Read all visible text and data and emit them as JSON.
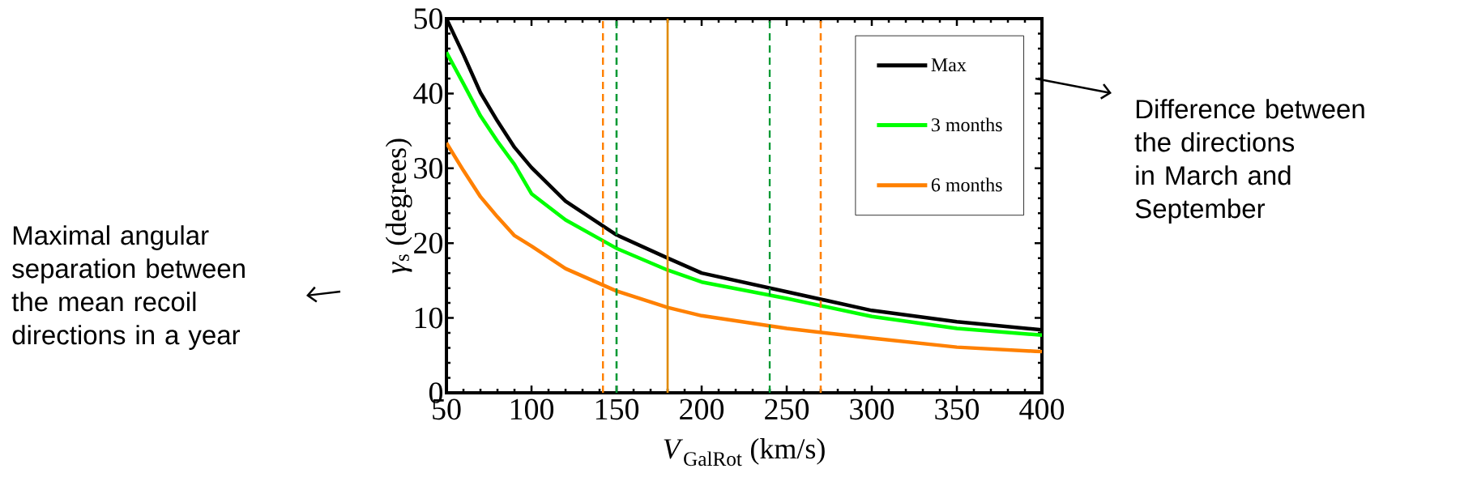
{
  "chart_data": {
    "type": "line",
    "xlabel": "*V*$_{GalRot}$ (km/s)",
    "ylabel": "*γ*$_{s}$ (degrees)",
    "x": [
      50,
      60,
      70,
      80,
      90,
      100,
      120,
      150,
      180,
      200,
      250,
      300,
      350,
      400
    ],
    "series": [
      {
        "name": "Max",
        "color": "#000000",
        "values": [
          50,
          45.2,
          40.1,
          36.3,
          32.8,
          30.1,
          25.6,
          21.1,
          18.0,
          16.0,
          13.5,
          11.0,
          9.5,
          8.4
        ]
      },
      {
        "name": "3 months",
        "color": "#00ff00",
        "values": [
          45.5,
          41.3,
          37.0,
          33.6,
          30.5,
          26.6,
          23.1,
          19.3,
          16.4,
          14.8,
          12.6,
          10.2,
          8.6,
          7.7
        ]
      },
      {
        "name": "6 months",
        "color": "#ff8000",
        "values": [
          33.4,
          29.7,
          26.2,
          23.5,
          21.0,
          19.6,
          16.6,
          13.6,
          11.4,
          10.3,
          8.6,
          7.3,
          6.1,
          5.5
        ]
      }
    ],
    "xlim": [
      50,
      400
    ],
    "ylim": [
      0,
      50
    ],
    "xticks": [
      50,
      100,
      150,
      200,
      250,
      300,
      350,
      400
    ],
    "yticks": [
      0,
      10,
      20,
      30,
      40,
      50
    ],
    "ref_lines": [
      {
        "axis": "x",
        "value": 142,
        "color": "#ff8000",
        "line_style": "dashed"
      },
      {
        "axis": "x",
        "value": 150,
        "color": "#009933",
        "line_style": "dashed"
      },
      {
        "axis": "x",
        "value": 180,
        "color": "#e08a00",
        "line_style": "solid"
      },
      {
        "axis": "x",
        "value": 240,
        "color": "#009933",
        "line_style": "dashed"
      },
      {
        "axis": "x",
        "value": 270,
        "color": "#ff8000",
        "line_style": "dashed"
      }
    ],
    "annotations": [
      "Maximal angular separation between the mean recoil directions in a year",
      "Difference between the directions in March and September"
    ],
    "legend": "top right",
    "grid": false,
    "marker": "none",
    "line_style": "solid"
  }
}
